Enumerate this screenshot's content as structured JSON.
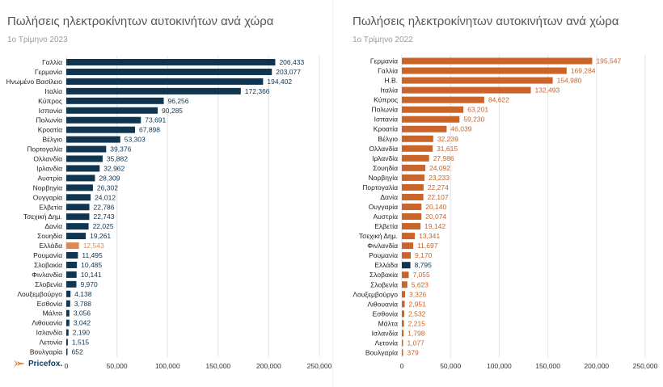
{
  "colors": {
    "navy": "#0f3551",
    "orange": "#c9642a",
    "grid": "#e3e3e3"
  },
  "logo": {
    "text": "Pricefox."
  },
  "chart_data": [
    {
      "type": "bar",
      "orientation": "horizontal",
      "title": "Πωλήσεις ηλεκτροκίνητων αυτοκινήτων ανά χώρα",
      "subtitle": "1ο Τρίμηνο 2023",
      "xlim": [
        0,
        250000
      ],
      "xticks": [
        0,
        50000,
        100000,
        150000,
        200000,
        250000
      ],
      "xtick_labels": [
        "0",
        "50,000",
        "100,000",
        "150,000",
        "200,000",
        "250,000"
      ],
      "bar_color": "#0f3551",
      "highlight_color": "#e08a52",
      "highlight_category": "Ελλάδα",
      "categories": [
        "Γαλλία",
        "Γερμανία",
        "Ηνωμένο Βασίλειο",
        "Ιταλία",
        "Κύπρος",
        "Ισπανία",
        "Πολωνία",
        "Κροατία",
        "Βέλγιο",
        "Πορτογαλία",
        "Ολλανδία",
        "Ιρλανδία",
        "Αυστρία",
        "Νορβηγία",
        "Ουγγαρία",
        "Ελβετία",
        "Τσεχική Δημ.",
        "Δανία",
        "Σουηδία",
        "Ελλάδα",
        "Ρουμανία",
        "Σλοβακία",
        "Φινλανδία",
        "Σλοβενία",
        "Λουξεμβούργο",
        "Εσθονία",
        "Μάλτα",
        "Λιθουανία",
        "Ισλανδία",
        "Λετονία",
        "Βουλγαρία"
      ],
      "values": [
        206433,
        203077,
        194402,
        172366,
        96256,
        90285,
        73691,
        67898,
        53303,
        39376,
        35882,
        32962,
        28309,
        26302,
        24012,
        22786,
        22743,
        22025,
        19261,
        12543,
        11495,
        10485,
        10141,
        9970,
        4138,
        3788,
        3056,
        3042,
        2190,
        1515,
        652
      ],
      "value_labels": [
        "206,433",
        "203,077",
        "194,402",
        "172,366",
        "96,256",
        "90,285",
        "73,691",
        "67,898",
        "53,303",
        "39,376",
        "35,882",
        "32,962",
        "28,309",
        "26,302",
        "24,012",
        "22,786",
        "22,743",
        "22,025",
        "19,261",
        "12,543",
        "11,495",
        "10,485",
        "10,141",
        "9,970",
        "4,138",
        "3,788",
        "3,056",
        "3,042",
        "2,190",
        "1,515",
        "652"
      ]
    },
    {
      "type": "bar",
      "orientation": "horizontal",
      "title": "Πωλήσεις ηλεκτροκίνητων αυτοκινήτων ανά χώρα",
      "subtitle": "1ο Τρίμηνο 2022",
      "xlim": [
        0,
        250000
      ],
      "xticks": [
        0,
        50000,
        100000,
        150000,
        200000,
        250000
      ],
      "xtick_labels": [
        "0",
        "50,000",
        "100,000",
        "150,000",
        "200,000",
        "250,000"
      ],
      "bar_color": "#c9642a",
      "highlight_color": "#0f3551",
      "highlight_category": "Ελλάδα",
      "categories": [
        "Γερμανία",
        "Γαλλία",
        "Η.Β.",
        "Ιταλία",
        "Κύπρος",
        "Πολωνία",
        "Ισπανία",
        "Κροατία",
        "Βέλγιο",
        "Ολλανδία",
        "Ιρλανδία",
        "Σουηδία",
        "Νορβηγία",
        "Πορτογαλία",
        "Δανία",
        "Ουγγαρία",
        "Αυστρία",
        "Ελβετία",
        "Τσεχική Δημ.",
        "Φινλανδία",
        "Ρουμανία",
        "Ελλάδα",
        "Σλοβακία",
        "Σλοβενία",
        "Λουξεμβούργο",
        "Λιθουανία",
        "Εσθονία",
        "Μάλτα",
        "Ισλανδία",
        "Λετονία",
        "Βουλγαρία"
      ],
      "values": [
        195547,
        169284,
        154980,
        132493,
        84622,
        63201,
        59230,
        46039,
        32239,
        31615,
        27986,
        24092,
        23233,
        22274,
        22107,
        20140,
        20074,
        19142,
        13341,
        11697,
        9170,
        8795,
        7055,
        5623,
        3326,
        2951,
        2532,
        2215,
        1798,
        1077,
        379
      ],
      "value_labels": [
        "195,547",
        "169,284",
        "154,980",
        "132,493",
        "84,622",
        "63,201",
        "59,230",
        "46,039",
        "32,239",
        "31,615",
        "27,986",
        "24,092",
        "23,233",
        "22,274",
        "22,107",
        "20,140",
        "20,074",
        "19,142",
        "13,341",
        "11,697",
        "9,170",
        "8,795",
        "7,055",
        "5,623",
        "3,326",
        "2,951",
        "2,532",
        "2,215",
        "1,798",
        "1,077",
        "379"
      ]
    }
  ]
}
